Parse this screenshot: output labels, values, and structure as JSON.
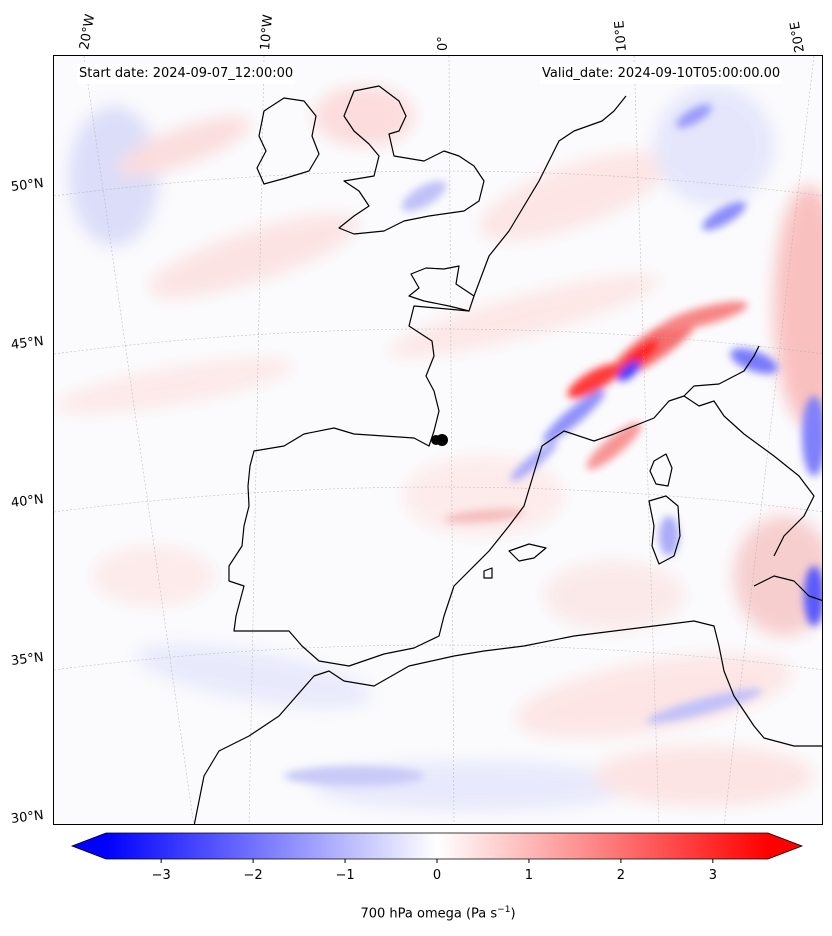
{
  "header": {
    "start_date": "Start date: 2024-09-07_12:00:00",
    "valid_date": "Valid_date: 2024-09-10T05:00:00.00"
  },
  "axes": {
    "longitude_labels": [
      "20°W",
      "10°W",
      "0°",
      "10°E",
      "20°E"
    ],
    "latitude_labels": [
      "50°N",
      "45°N",
      "40°N",
      "35°N",
      "30°N"
    ]
  },
  "colorbar": {
    "title": "700 hPa omega (Pa s",
    "title_sup": "−1",
    "title_end": ")",
    "ticks": [
      "−3",
      "−2",
      "−1",
      "0",
      "1",
      "2",
      "3"
    ],
    "tick_values": [
      -3,
      -2,
      -1,
      0,
      1,
      2,
      3
    ],
    "range": [
      -3.6,
      3.6
    ],
    "colormap": "bwr",
    "extend": "both",
    "color_min": "#0000ff",
    "color_mid": "#ffffff",
    "color_max": "#ff0000"
  },
  "map": {
    "projection": "conic",
    "extent_lon": [
      -20,
      20
    ],
    "extent_lat": [
      30,
      53
    ],
    "coastline_color": "#000000",
    "gridline_style": "dotted",
    "marker": {
      "name": "point",
      "lon": -1.6,
      "lat": 41.5,
      "color": "#000000"
    }
  }
}
